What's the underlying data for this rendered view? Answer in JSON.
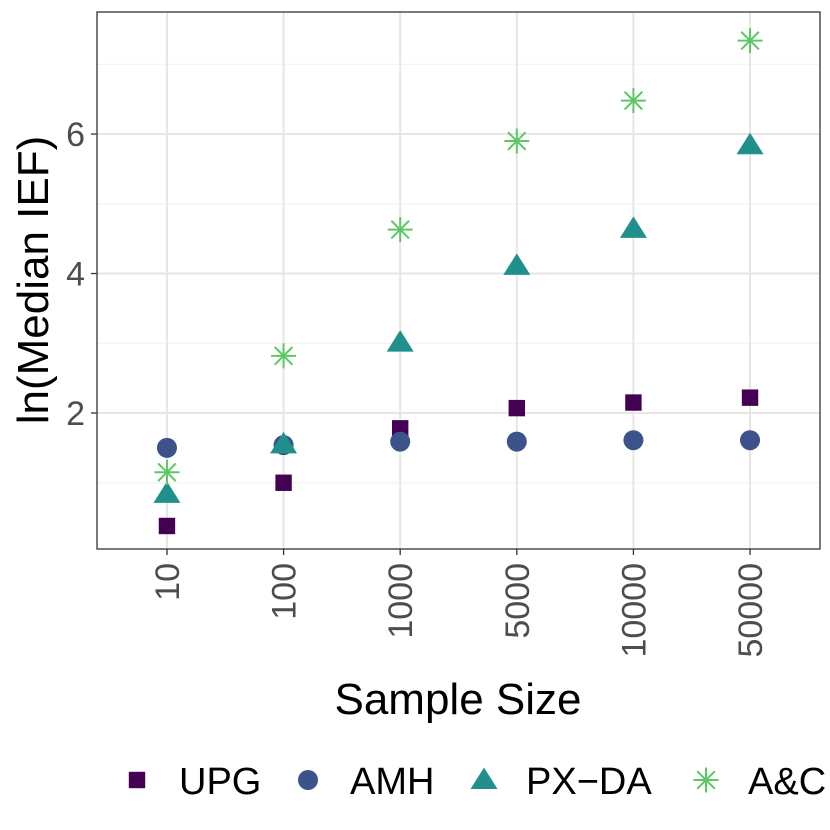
{
  "chart_data": {
    "type": "scatter",
    "title": "",
    "xlabel": "Sample Size",
    "ylabel": "ln(Median IEF)",
    "categories": [
      "10",
      "100",
      "1000",
      "5000",
      "10000",
      "50000"
    ],
    "yticks": [
      2,
      4,
      6
    ],
    "ylim": [
      0.05,
      7.75
    ],
    "grid": true,
    "legend_position": "bottom",
    "series": [
      {
        "name": "UPG",
        "marker": "square",
        "color": "#440154",
        "values": [
          0.38,
          1.0,
          1.78,
          2.07,
          2.15,
          2.22
        ]
      },
      {
        "name": "AMH",
        "marker": "circle",
        "color": "#3B528B",
        "values": [
          1.5,
          1.54,
          1.59,
          1.59,
          1.61,
          1.61
        ]
      },
      {
        "name": "PX−DA",
        "marker": "triangle",
        "color": "#21908C",
        "values": [
          0.84,
          1.55,
          3.01,
          4.11,
          4.64,
          5.84
        ]
      },
      {
        "name": "A&C",
        "marker": "asterisk",
        "color": "#5DC863",
        "values": [
          1.15,
          2.82,
          4.63,
          5.9,
          6.48,
          7.34
        ]
      }
    ]
  }
}
